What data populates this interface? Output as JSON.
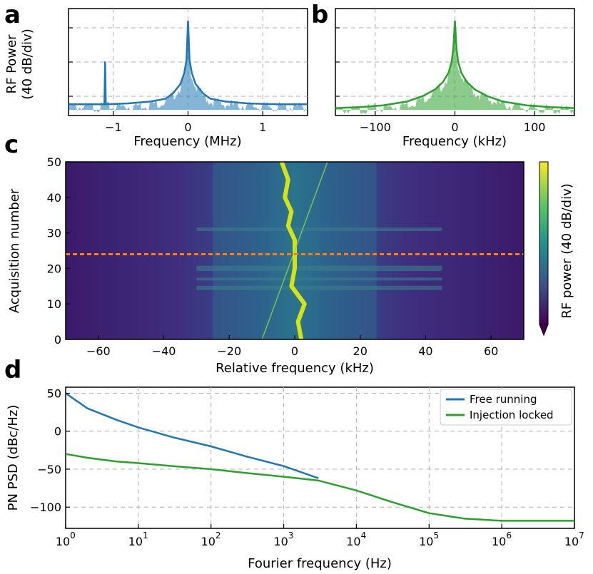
{
  "colors": {
    "blue": "#1f77b4",
    "green": "#2ca02c",
    "orange": "#ff7f0e",
    "grid": "#b0b0b0"
  },
  "chart_data": [
    {
      "panel": "a",
      "type": "line",
      "xlabel": "Frequency (MHz)",
      "ylabel_line1": "RF Power",
      "ylabel_line2": "(40 dB/div)",
      "xlim": [
        -1.6,
        1.6
      ],
      "xticks": [
        -1,
        0,
        1
      ],
      "xtick_labels": [
        "−1",
        "0",
        "1"
      ],
      "ylim": [
        0,
        115
      ],
      "series": [
        {
          "name": "spectrum",
          "color": "#1f77b4",
          "x": [
            -1.6,
            -1.2,
            -1.12,
            -1.11,
            -1.1,
            -0.8,
            -0.5,
            -0.3,
            -0.2,
            -0.1,
            -0.05,
            -0.02,
            0,
            0.02,
            0.05,
            0.1,
            0.2,
            0.3,
            0.5,
            0.8,
            1.2,
            1.6
          ],
          "y": [
            12,
            12,
            12,
            58,
            12,
            13,
            15,
            18,
            24,
            34,
            46,
            60,
            102,
            60,
            46,
            34,
            24,
            18,
            15,
            13,
            12,
            12
          ]
        }
      ]
    },
    {
      "panel": "b",
      "type": "line",
      "xlabel": "Frequency (kHz)",
      "xlim": [
        -150,
        150
      ],
      "xticks": [
        -100,
        0,
        100
      ],
      "xtick_labels": [
        "−100",
        "0",
        "100"
      ],
      "ylim": [
        0,
        115
      ],
      "series": [
        {
          "name": "spectrum",
          "color": "#2ca02c",
          "x": [
            -150,
            -120,
            -90,
            -60,
            -40,
            -25,
            -15,
            -8,
            -4,
            -2,
            0,
            2,
            4,
            8,
            15,
            25,
            40,
            60,
            90,
            120,
            150
          ],
          "y": [
            8,
            9,
            11,
            15,
            21,
            28,
            36,
            46,
            58,
            72,
            102,
            72,
            58,
            46,
            36,
            28,
            21,
            15,
            11,
            9,
            8
          ]
        }
      ]
    },
    {
      "panel": "c",
      "type": "heatmap",
      "xlabel": "Relative frequency (kHz)",
      "ylabel": "Acquisition number",
      "xlim": [
        -70,
        70
      ],
      "ylim": [
        0,
        50
      ],
      "xticks": [
        -60,
        -40,
        -20,
        0,
        20,
        40,
        60
      ],
      "xtick_labels": [
        "−60",
        "−40",
        "−20",
        "0",
        "20",
        "40",
        "60"
      ],
      "yticks": [
        0,
        10,
        20,
        30,
        40,
        50
      ],
      "ytick_labels": [
        "0",
        "10",
        "20",
        "30",
        "40",
        "50"
      ],
      "colorbar_label": "RF power (40 dB/div)",
      "marker_line": {
        "acquisition": 24,
        "color": "#ff7f0e"
      },
      "peak_track": {
        "acquisition": [
          0,
          5,
          10,
          15,
          20,
          24,
          28,
          32,
          36,
          40,
          45,
          50
        ],
        "frequency_khz": [
          2,
          1,
          3,
          -1,
          0,
          0,
          0,
          -2,
          -1,
          -3,
          -2,
          -4
        ]
      }
    },
    {
      "panel": "d",
      "type": "line",
      "xlabel": "Fourier frequency (Hz)",
      "ylabel": "PN PSD (dBc/Hz)",
      "xscale": "log",
      "xlim": [
        1,
        10000000
      ],
      "ylim": [
        -128,
        58
      ],
      "xtick_exponents": [
        "0",
        "1",
        "2",
        "3",
        "4",
        "5",
        "6",
        "7"
      ],
      "xtick_base": "10",
      "yticks": [
        50,
        0,
        -50,
        -100
      ],
      "ytick_labels": [
        "50",
        "0",
        "−50",
        "−100"
      ],
      "legend_position": "top-right",
      "series": [
        {
          "name": "Free running",
          "color": "#1f77b4",
          "x": [
            1,
            2,
            5,
            10,
            30,
            100,
            300,
            1000,
            3000
          ],
          "y": [
            50,
            30,
            15,
            5,
            -8,
            -20,
            -33,
            -46,
            -62
          ]
        },
        {
          "name": "Injection locked",
          "color": "#2ca02c",
          "x": [
            1,
            2,
            5,
            10,
            30,
            100,
            300,
            1000,
            3000,
            10000,
            30000,
            100000,
            300000,
            1000000,
            3000000,
            10000000
          ],
          "y": [
            -30,
            -35,
            -40,
            -42,
            -46,
            -50,
            -55,
            -60,
            -65,
            -78,
            -93,
            -108,
            -115,
            -118,
            -118,
            -118
          ]
        }
      ]
    }
  ]
}
